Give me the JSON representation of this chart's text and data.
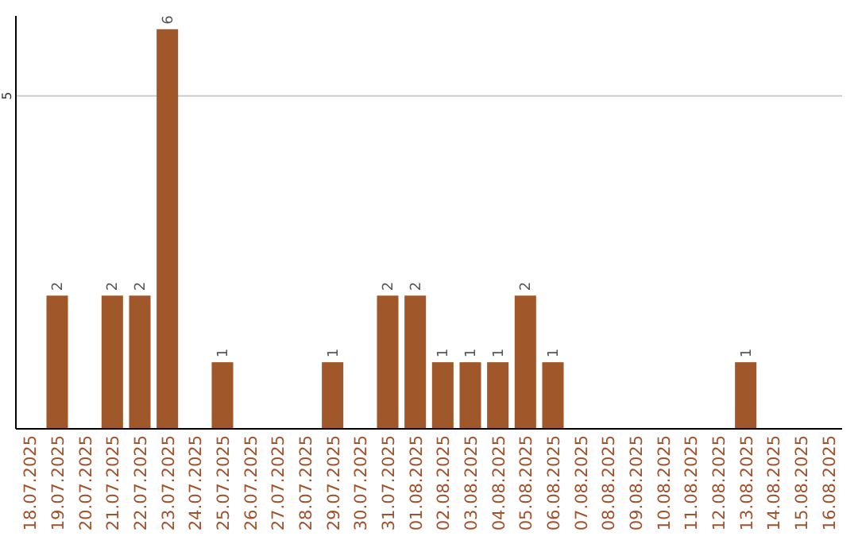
{
  "chart_data": {
    "type": "bar",
    "categories": [
      "18.07.2025",
      "19.07.2025",
      "20.07.2025",
      "21.07.2025",
      "22.07.2025",
      "23.07.2025",
      "24.07.2025",
      "25.07.2025",
      "26.07.2025",
      "27.07.2025",
      "28.07.2025",
      "29.07.2025",
      "30.07.2025",
      "31.07.2025",
      "01.08.2025",
      "02.08.2025",
      "03.08.2025",
      "04.08.2025",
      "05.08.2025",
      "06.08.2025",
      "07.08.2025",
      "08.08.2025",
      "09.08.2025",
      "10.08.2025",
      "11.08.2025",
      "12.08.2025",
      "13.08.2025",
      "14.08.2025",
      "15.08.2025",
      "16.08.2025"
    ],
    "values": [
      0,
      2,
      0,
      2,
      2,
      6,
      0,
      1,
      0,
      0,
      0,
      1,
      0,
      2,
      2,
      1,
      1,
      1,
      2,
      1,
      0,
      0,
      0,
      0,
      0,
      0,
      1,
      0,
      0,
      0
    ],
    "color": "#a0582a",
    "ylim": [
      0,
      6.2
    ],
    "yticks": [
      5
    ],
    "grid": "y",
    "value_labels": [
      null,
      "2",
      null,
      "2",
      "2",
      "6",
      null,
      "1",
      null,
      null,
      null,
      "1",
      null,
      "2",
      "2",
      "1",
      "1",
      "1",
      "2",
      "1",
      null,
      null,
      null,
      null,
      null,
      null,
      "1",
      null,
      null,
      null
    ]
  }
}
